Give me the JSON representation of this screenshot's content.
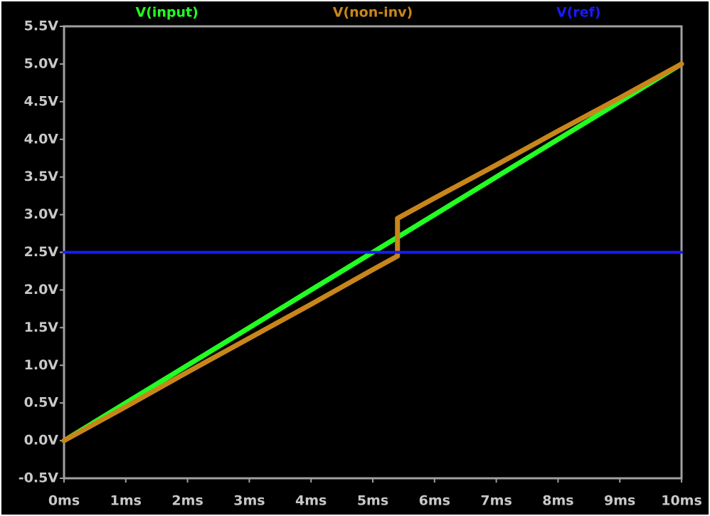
{
  "chart_data": {
    "type": "line",
    "series": [
      {
        "name": "V(input)",
        "color": "#22ff22",
        "x": [
          0,
          1,
          2,
          3,
          4,
          5,
          5.4,
          6,
          7,
          8,
          9,
          10
        ],
        "values": [
          0,
          0.5,
          1.0,
          1.5,
          2.0,
          2.5,
          2.7,
          3.0,
          3.5,
          4.0,
          4.5,
          5.0
        ]
      },
      {
        "name": "V(non-inv)",
        "color": "#c8861a",
        "x": [
          0,
          1,
          2,
          3,
          4,
          5,
          5.4,
          5.4,
          6,
          7,
          8,
          9,
          10
        ],
        "values": [
          0,
          0.45,
          0.91,
          1.36,
          1.81,
          2.27,
          2.45,
          2.95,
          3.22,
          3.66,
          4.11,
          4.55,
          5.0
        ]
      },
      {
        "name": "V(ref)",
        "color": "#1a1aff",
        "x": [
          0,
          10
        ],
        "values": [
          2.5,
          2.5
        ]
      }
    ],
    "xlim": [
      0,
      10
    ],
    "xticks": [
      {
        "value": 0,
        "label": "0ms"
      },
      {
        "value": 1,
        "label": "1ms"
      },
      {
        "value": 2,
        "label": "2ms"
      },
      {
        "value": 3,
        "label": "3ms"
      },
      {
        "value": 4,
        "label": "4ms"
      },
      {
        "value": 5,
        "label": "5ms"
      },
      {
        "value": 6,
        "label": "6ms"
      },
      {
        "value": 7,
        "label": "7ms"
      },
      {
        "value": 8,
        "label": "8ms"
      },
      {
        "value": 9,
        "label": "9ms"
      },
      {
        "value": 10,
        "label": "10ms"
      }
    ],
    "ylim": [
      -0.5,
      5.5
    ],
    "yticks": [
      {
        "value": -0.5,
        "label": "-0.5V"
      },
      {
        "value": 0,
        "label": "0.0V"
      },
      {
        "value": 0.5,
        "label": "0.5V"
      },
      {
        "value": 1,
        "label": "1.0V"
      },
      {
        "value": 1.5,
        "label": "1.5V"
      },
      {
        "value": 2,
        "label": "2.0V"
      },
      {
        "value": 2.5,
        "label": "2.5V"
      },
      {
        "value": 3,
        "label": "3.0V"
      },
      {
        "value": 3.5,
        "label": "3.5V"
      },
      {
        "value": 4,
        "label": "4.0V"
      },
      {
        "value": 4.5,
        "label": "4.5V"
      },
      {
        "value": 5,
        "label": "5.0V"
      },
      {
        "value": 5.5,
        "label": "5.5V"
      }
    ]
  }
}
